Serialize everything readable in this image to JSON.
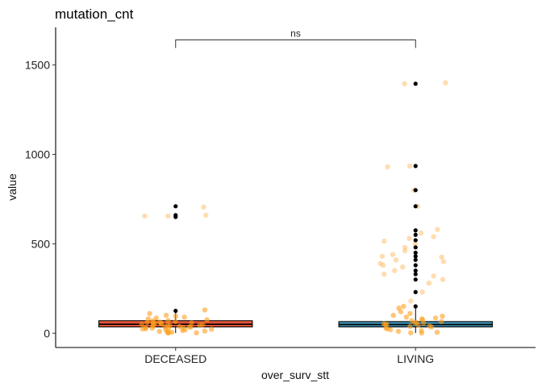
{
  "chart_data": {
    "type": "box",
    "title": "mutation_cnt",
    "xlabel": "over_surv_stt",
    "ylabel": "value",
    "categories": [
      "DECEASED",
      "LIVING"
    ],
    "ylim": [
      -80,
      1710
    ],
    "yticks": [
      0,
      500,
      1000,
      1500
    ],
    "grid": false,
    "legend": "none",
    "boxes": [
      {
        "category": "DECEASED",
        "q1": 35,
        "median": 50,
        "q3": 70,
        "whisker_low": 1,
        "whisker_high": 120,
        "fill": "#e2523a",
        "outliers": [
          125,
          650,
          660,
          710
        ],
        "jitter": [
          705,
          660,
          655,
          655,
          130,
          110,
          100,
          95,
          90,
          85,
          80,
          75,
          70,
          68,
          65,
          62,
          60,
          58,
          55,
          52,
          50,
          48,
          46,
          44,
          42,
          40,
          38,
          36,
          34,
          32,
          30,
          28,
          26,
          24,
          22,
          20,
          18,
          15,
          12,
          10,
          8,
          5,
          3,
          2,
          1,
          45,
          55,
          60,
          35,
          25
        ]
      },
      {
        "category": "LIVING",
        "q1": 35,
        "median": 48,
        "q3": 65,
        "whisker_low": 1,
        "whisker_high": 140,
        "fill": "#3d8fb0",
        "outliers": [
          1395,
          935,
          800,
          710,
          575,
          550,
          520,
          480,
          450,
          430,
          410,
          380,
          350,
          330,
          300,
          230,
          150
        ],
        "jitter": [
          1400,
          1395,
          935,
          930,
          800,
          710,
          580,
          560,
          540,
          530,
          515,
          500,
          480,
          460,
          440,
          430,
          425,
          410,
          400,
          390,
          380,
          370,
          350,
          330,
          320,
          300,
          280,
          230,
          180,
          150,
          140,
          120,
          110,
          100,
          95,
          90,
          85,
          80,
          75,
          70,
          65,
          60,
          55,
          50,
          45,
          40,
          35,
          30,
          25,
          20,
          15,
          10,
          5,
          2,
          1,
          48,
          52,
          58,
          38
        ]
      }
    ],
    "comparisons": [
      {
        "group1": "DECEASED",
        "group2": "LIVING",
        "label": "ns",
        "y": 1640
      }
    ],
    "colors": {
      "jitter": "#ff9f1c",
      "outlier": "#000000",
      "box_stroke": "#000000"
    }
  }
}
